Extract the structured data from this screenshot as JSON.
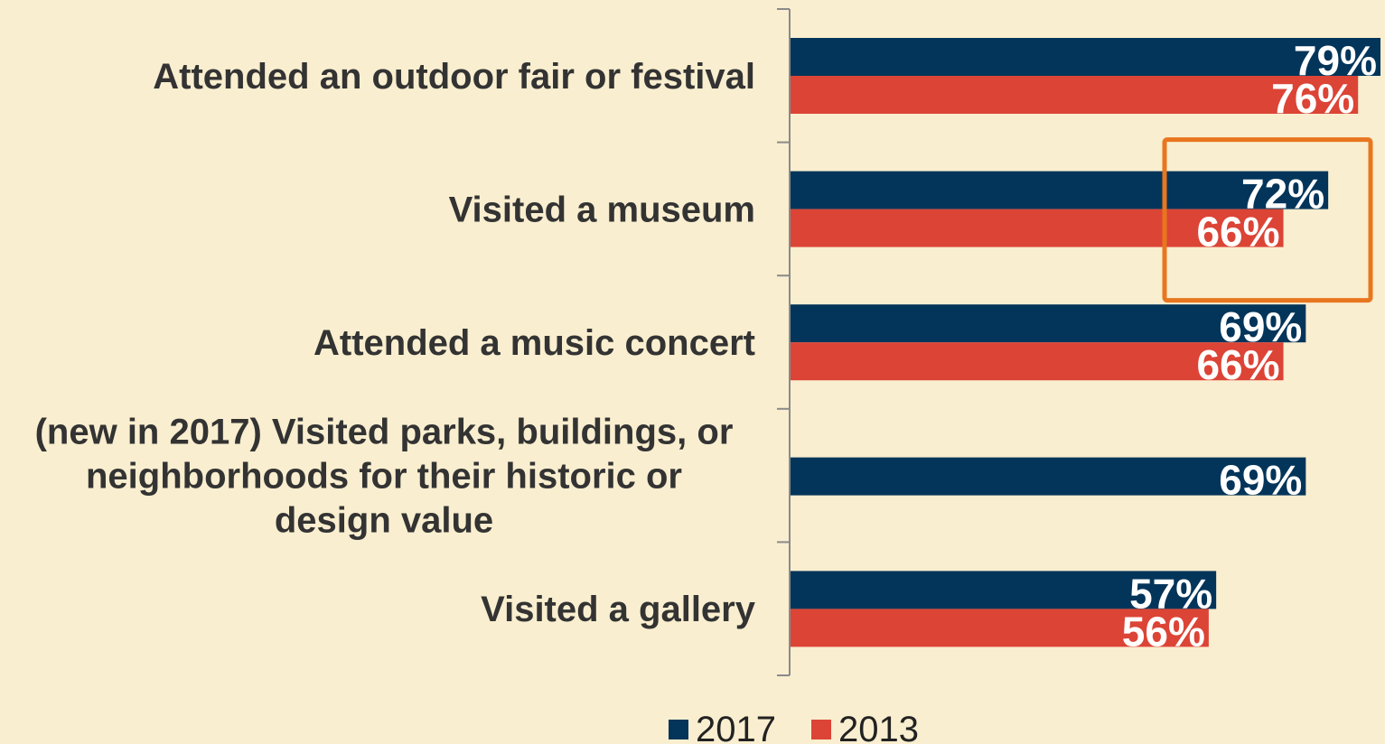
{
  "chart_data": {
    "type": "bar",
    "orientation": "horizontal",
    "categories": [
      "Attended an outdoor fair or festival",
      "Visited a museum",
      "Attended a music concert",
      "(new in 2017) Visited parks, buildings, or neighborhoods for their historic or design value",
      "Visited a gallery"
    ],
    "category_lines": [
      [
        "Attended an outdoor fair or festival"
      ],
      [
        "Visited a museum"
      ],
      [
        "Attended a music concert"
      ],
      [
        "(new in 2017) Visited parks, buildings, or",
        "neighborhoods for their historic or",
        "design value"
      ],
      [
        "Visited a gallery"
      ]
    ],
    "series": [
      {
        "name": "2017",
        "color": "#03355a",
        "values": [
          79,
          72,
          69,
          69,
          57
        ],
        "labels": [
          "79%",
          "72%",
          "69%",
          "69%",
          "57%"
        ]
      },
      {
        "name": "2013",
        "color": "#dc4436",
        "values": [
          76,
          66,
          66,
          null,
          56
        ],
        "labels": [
          "76%",
          "66%",
          "66%",
          null,
          "56%"
        ]
      }
    ],
    "xlim": [
      0,
      79
    ],
    "highlight": {
      "category": "Visited a museum",
      "color": "#e8761f"
    },
    "legend_position": "bottom",
    "grid": false
  }
}
